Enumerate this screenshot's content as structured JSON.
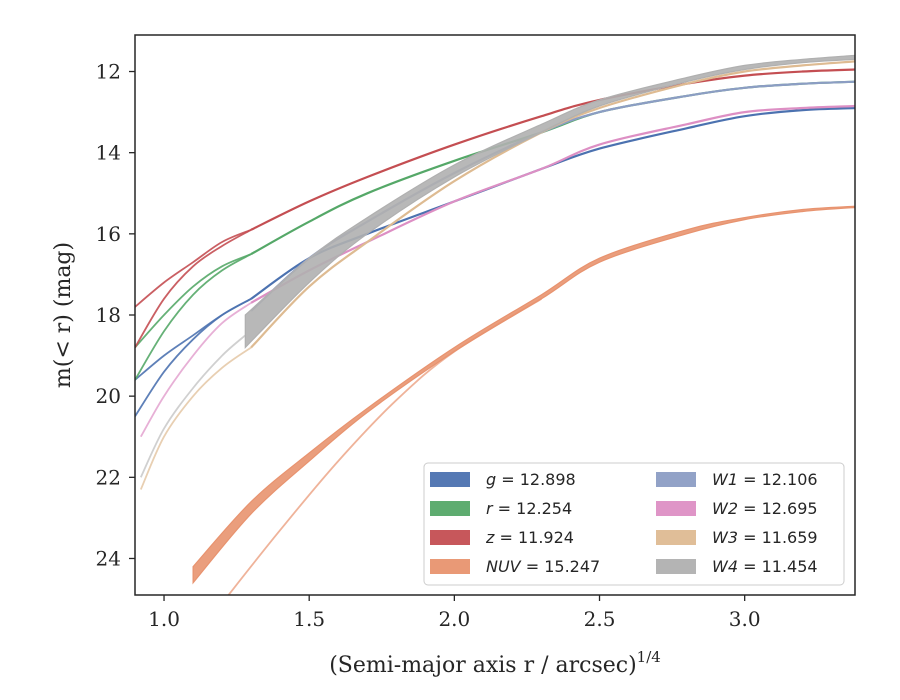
{
  "chart_data": {
    "type": "line",
    "title": "",
    "xlabel": "(Semi-major axis r / arcsec)",
    "xlabel_exponent": "1/4",
    "ylabel": "m(< r) (mag)",
    "xlim": [
      0.9,
      3.38
    ],
    "ylim": [
      24.9,
      11.1
    ],
    "y_inverted": true,
    "grid": false,
    "legend_placement": "lower-right",
    "x_ticks": [
      {
        "value": 1.0,
        "label": "1.0"
      },
      {
        "value": 1.5,
        "label": "1.5"
      },
      {
        "value": 2.0,
        "label": "2.0"
      },
      {
        "value": 2.5,
        "label": "2.5"
      },
      {
        "value": 3.0,
        "label": "3.0"
      }
    ],
    "y_ticks": [
      {
        "value": 12,
        "label": "12"
      },
      {
        "value": 14,
        "label": "14"
      },
      {
        "value": 16,
        "label": "16"
      },
      {
        "value": 18,
        "label": "18"
      },
      {
        "value": 20,
        "label": "20"
      },
      {
        "value": 22,
        "label": "22"
      },
      {
        "value": 24,
        "label": "24"
      }
    ],
    "series": [
      {
        "name": "g = 12.898",
        "var": "g",
        "value": "12.898",
        "color": "#4C72B0",
        "x": [
          1.3,
          1.5,
          1.7,
          2.0,
          2.3,
          2.5,
          2.8,
          3.0,
          3.2,
          3.38
        ],
        "y": [
          17.6,
          16.6,
          16.0,
          15.2,
          14.4,
          13.9,
          13.4,
          13.1,
          12.95,
          12.9
        ],
        "extras": [
          {
            "x": [
              0.9,
              1.0,
              1.1,
              1.2,
              1.3
            ],
            "y": [
              20.5,
              19.4,
              18.6,
              18.0,
              17.6
            ],
            "opacity": 0.9
          },
          {
            "x": [
              0.9,
              1.0,
              1.1,
              1.2,
              1.3
            ],
            "y": [
              19.6,
              19.0,
              18.5,
              18.0,
              17.6
            ],
            "opacity": 0.9
          }
        ]
      },
      {
        "name": "r = 12.254",
        "var": "r",
        "value": "12.254",
        "color": "#55A868",
        "x": [
          1.3,
          1.5,
          1.7,
          2.0,
          2.3,
          2.5,
          2.8,
          3.0,
          3.2,
          3.38
        ],
        "y": [
          16.5,
          15.7,
          15.0,
          14.2,
          13.5,
          13.0,
          12.6,
          12.4,
          12.3,
          12.25
        ],
        "extras": [
          {
            "x": [
              0.9,
              1.0,
              1.1,
              1.2,
              1.3
            ],
            "y": [
              19.6,
              18.4,
              17.5,
              16.9,
              16.5
            ],
            "opacity": 0.9
          },
          {
            "x": [
              0.9,
              1.0,
              1.1,
              1.2,
              1.3
            ],
            "y": [
              18.8,
              18.0,
              17.3,
              16.8,
              16.5
            ],
            "opacity": 0.9
          }
        ]
      },
      {
        "name": "z = 11.924",
        "var": "z",
        "value": "11.924",
        "color": "#C44E52",
        "x": [
          1.3,
          1.5,
          1.7,
          2.0,
          2.3,
          2.5,
          2.8,
          3.0,
          3.2,
          3.38
        ],
        "y": [
          15.9,
          15.2,
          14.6,
          13.8,
          13.1,
          12.7,
          12.3,
          12.1,
          12.0,
          11.95
        ],
        "extras": [
          {
            "x": [
              0.9,
              1.0,
              1.1,
              1.2,
              1.3
            ],
            "y": [
              18.8,
              17.6,
              16.8,
              16.3,
              15.9
            ],
            "opacity": 0.9
          },
          {
            "x": [
              0.9,
              1.0,
              1.1,
              1.2,
              1.3
            ],
            "y": [
              17.8,
              17.2,
              16.7,
              16.2,
              15.9
            ],
            "opacity": 0.9
          }
        ]
      },
      {
        "name": "NUV = 15.247",
        "var": "NUV",
        "value": "15.247",
        "color": "#E8936F",
        "band": true,
        "x": [
          1.1,
          1.3,
          1.5,
          1.7,
          2.0,
          2.3,
          2.5,
          2.8,
          3.0,
          3.2,
          3.38
        ],
        "y_lo": [
          24.2,
          22.6,
          21.4,
          20.3,
          18.8,
          17.5,
          16.6,
          15.9,
          15.6,
          15.4,
          15.32
        ],
        "y_hi": [
          24.6,
          22.9,
          21.6,
          20.4,
          18.9,
          17.6,
          16.7,
          16.0,
          15.65,
          15.45,
          15.35
        ],
        "extras": [
          {
            "x": [
              1.2,
              1.4,
              1.6,
              1.8,
              2.0,
              2.3
            ],
            "y": [
              25.1,
              23.3,
              21.6,
              20.1,
              18.9,
              17.6
            ],
            "opacity": 0.7
          }
        ]
      },
      {
        "name": "W1 = 12.106",
        "var": "W1",
        "value": "12.106",
        "color": "#8C9DC4",
        "x": [
          1.3,
          1.5,
          1.7,
          2.0,
          2.3,
          2.5,
          2.8,
          3.0,
          3.2,
          3.38
        ],
        "y": [
          17.9,
          16.6,
          15.7,
          14.5,
          13.5,
          13.0,
          12.6,
          12.4,
          12.3,
          12.25
        ],
        "extras": []
      },
      {
        "name": "W2 = 12.695",
        "var": "W2",
        "value": "12.695",
        "color": "#DD8FC4",
        "x": [
          1.3,
          1.5,
          1.7,
          2.0,
          2.3,
          2.5,
          2.8,
          3.0,
          3.2,
          3.38
        ],
        "y": [
          17.7,
          16.9,
          16.2,
          15.2,
          14.4,
          13.8,
          13.3,
          13.0,
          12.9,
          12.85
        ],
        "extras": [
          {
            "x": [
              0.92,
              1.0,
              1.1,
              1.2,
              1.3
            ],
            "y": [
              21.0,
              20.0,
              19.0,
              18.2,
              17.7
            ],
            "opacity": 0.7
          }
        ]
      },
      {
        "name": "W3 = 11.659",
        "var": "W3",
        "value": "11.659",
        "color": "#DEBB92",
        "x": [
          1.3,
          1.5,
          1.7,
          2.0,
          2.3,
          2.5,
          2.8,
          3.0,
          3.2,
          3.38
        ],
        "y": [
          18.8,
          17.3,
          16.2,
          14.7,
          13.5,
          12.9,
          12.3,
          12.0,
          11.85,
          11.75
        ],
        "extras": [
          {
            "x": [
              0.92,
              1.0,
              1.1,
              1.2,
              1.3
            ],
            "y": [
              22.3,
              21.0,
              20.0,
              19.3,
              18.8
            ],
            "opacity": 0.7
          }
        ]
      },
      {
        "name": "W4 = 11.454",
        "var": "W4",
        "value": "11.454",
        "color": "#B0B0B0",
        "band": true,
        "x": [
          1.28,
          1.5,
          1.7,
          2.0,
          2.3,
          2.5,
          2.8,
          3.0,
          3.2,
          3.38
        ],
        "y_lo": [
          18.0,
          16.6,
          15.6,
          14.3,
          13.3,
          12.7,
          12.15,
          11.85,
          11.7,
          11.6
        ],
        "y_hi": [
          18.8,
          17.2,
          16.0,
          14.6,
          13.5,
          12.85,
          12.25,
          11.95,
          11.78,
          11.7
        ],
        "extras": [
          {
            "x": [
              0.92,
              1.0,
              1.1,
              1.2,
              1.28
            ],
            "y": [
              22.0,
              20.8,
              19.8,
              19.0,
              18.5
            ],
            "opacity": 0.6
          }
        ]
      }
    ]
  }
}
